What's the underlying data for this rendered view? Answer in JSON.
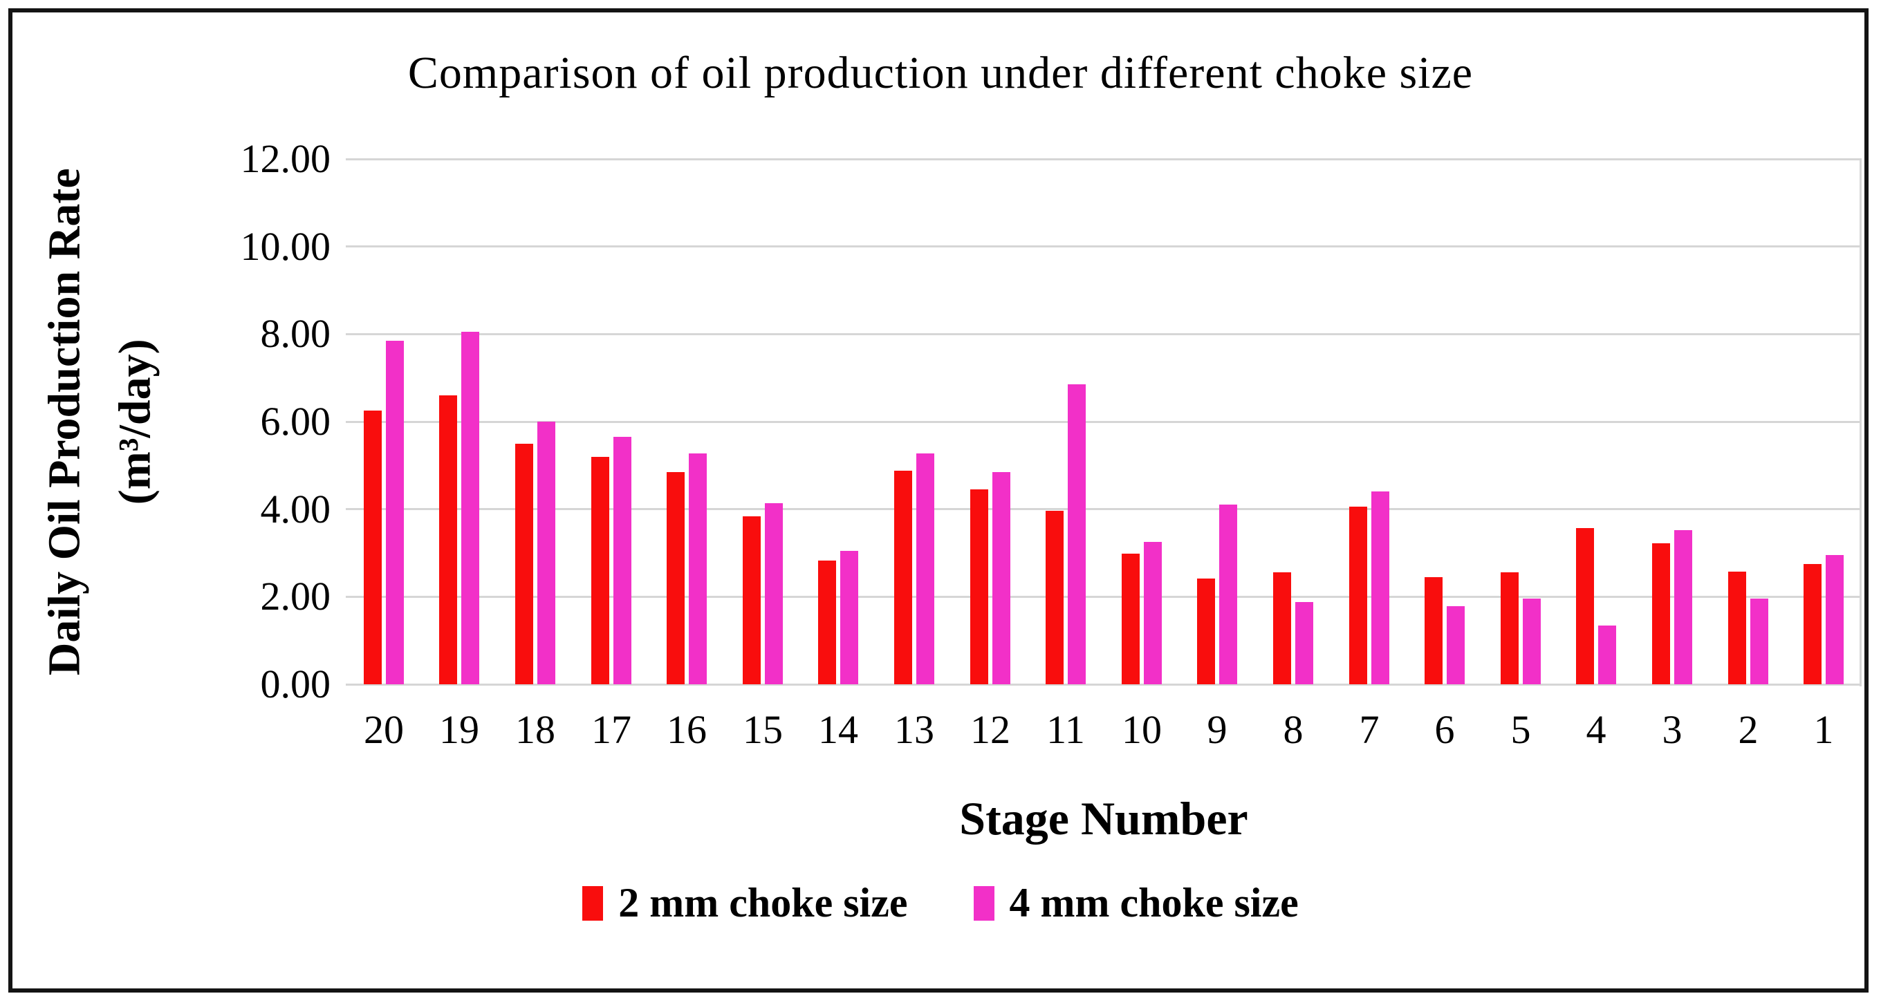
{
  "chart_data": {
    "type": "bar",
    "title": "Comparison of oil production under different choke size",
    "xlabel": "Stage Number",
    "ylabel_line1": "Daily Oil Production Rate",
    "ylabel_line2": "(m³/day)",
    "categories": [
      "20",
      "19",
      "18",
      "17",
      "16",
      "15",
      "14",
      "13",
      "12",
      "11",
      "10",
      "9",
      "8",
      "7",
      "6",
      "5",
      "4",
      "3",
      "2",
      "1"
    ],
    "series": [
      {
        "name": "2 mm choke size",
        "color": "#f90d0d",
        "values": [
          6.25,
          6.6,
          5.5,
          5.2,
          4.85,
          3.84,
          2.82,
          4.88,
          4.46,
          3.96,
          2.98,
          2.42,
          2.56,
          4.05,
          2.44,
          2.56,
          3.57,
          3.22,
          2.57,
          2.75
        ]
      },
      {
        "name": "4 mm choke size",
        "color": "#f230c8",
        "values": [
          7.85,
          8.05,
          6.0,
          5.65,
          5.28,
          4.14,
          3.04,
          5.28,
          4.85,
          6.85,
          3.25,
          4.1,
          1.88,
          4.4,
          1.78,
          1.95,
          1.34,
          3.52,
          1.95,
          2.95
        ]
      }
    ],
    "ylim": [
      0,
      12
    ],
    "ytick_step": 2,
    "ytick_labels": [
      "0.00",
      "2.00",
      "4.00",
      "6.00",
      "8.00",
      "10.00",
      "12.00"
    ],
    "grid": true,
    "gridline_color": "#d6d6d6",
    "legend_position": "bottom"
  }
}
